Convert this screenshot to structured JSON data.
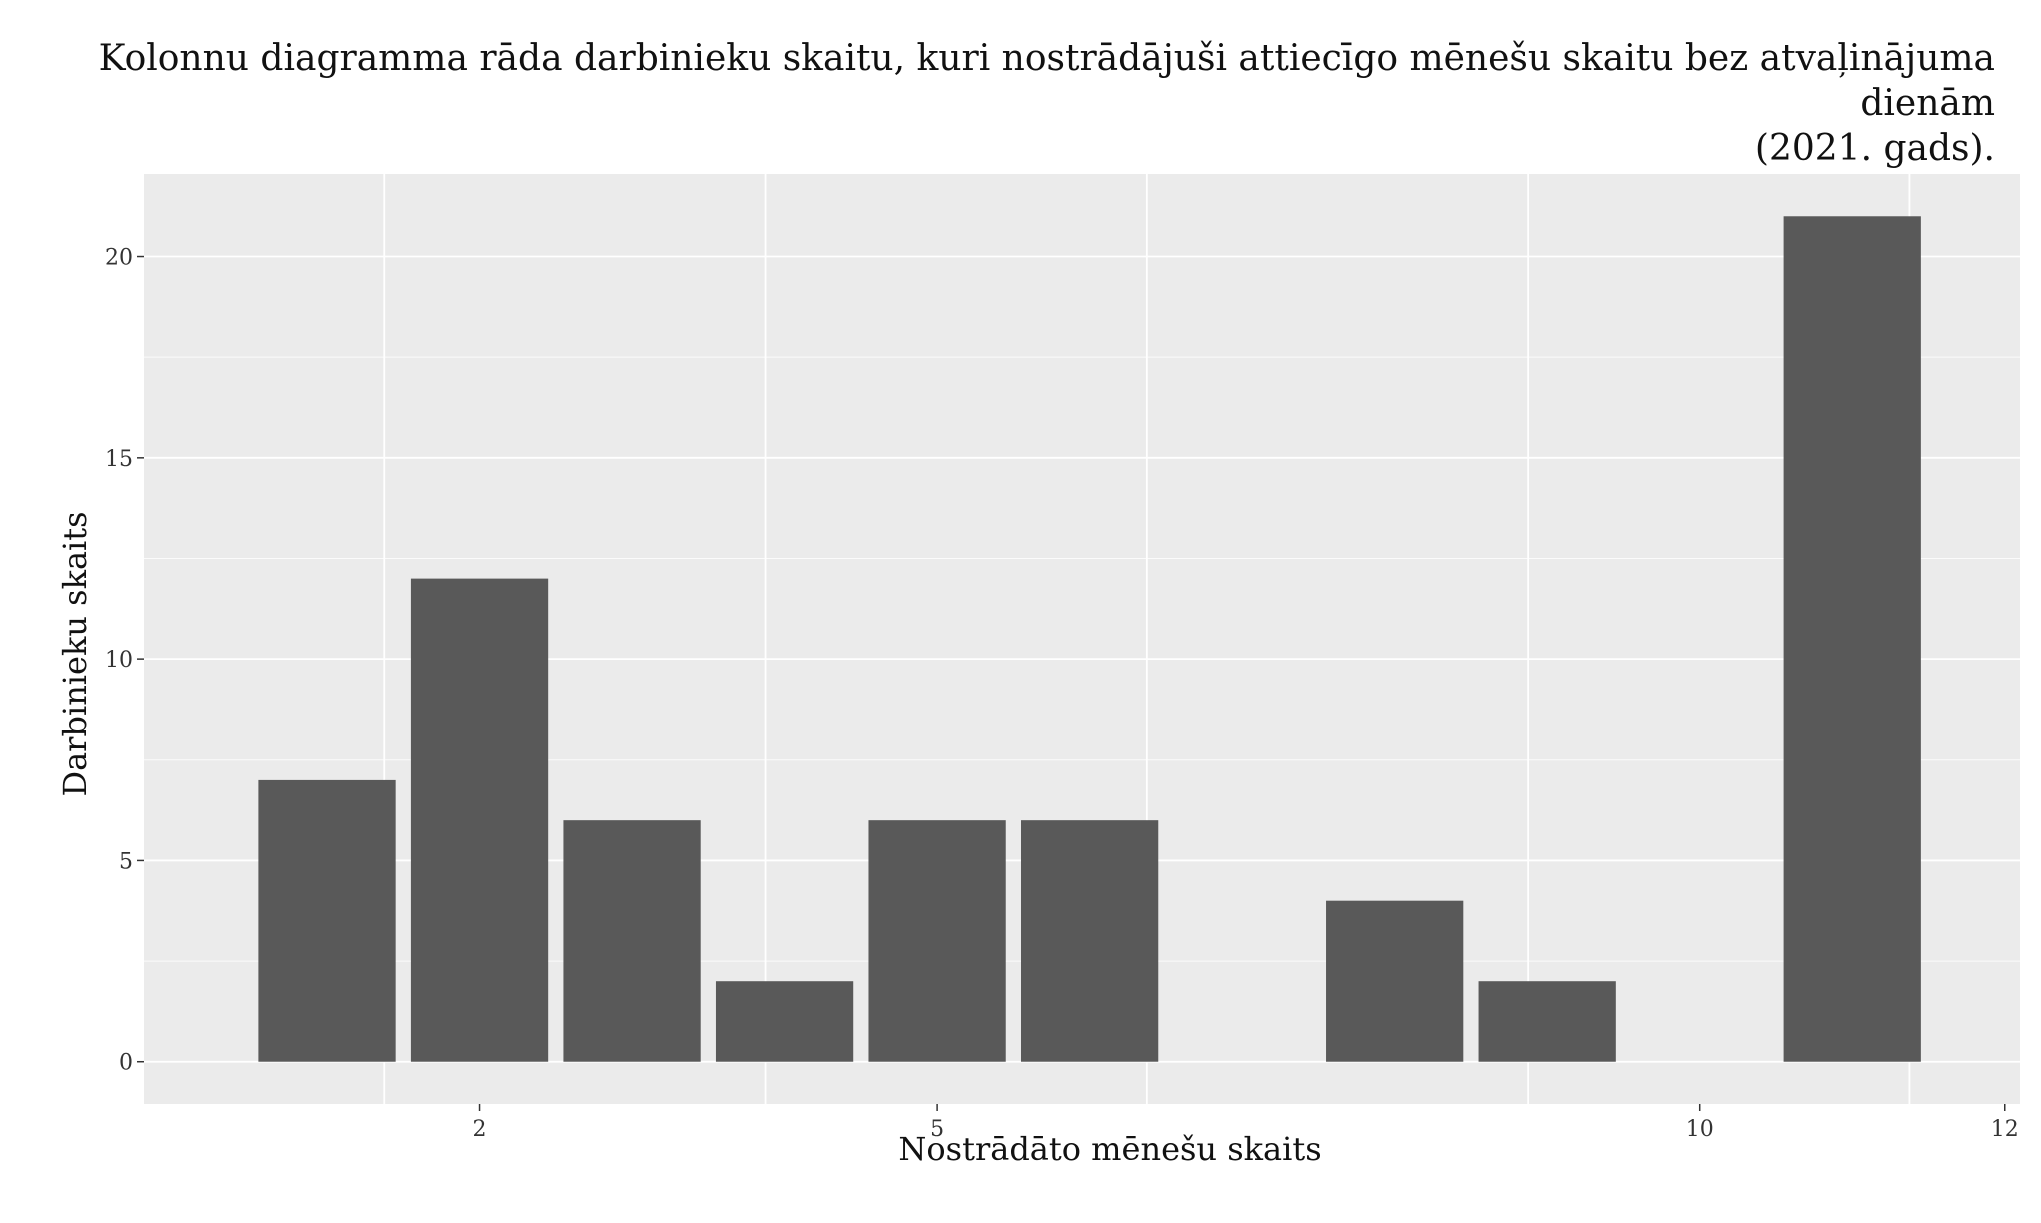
{
  "chart_data": {
    "type": "bar",
    "title_line1": "Kolonnu diagramma rāda darbinieku skaitu, kuri nostrādājuši attiecīgo mēnešu skaitu bez atvaļinājuma dienām",
    "title_line2": "(2021. gads).",
    "xlabel": "Nostrādāto mēnešu skaits",
    "ylabel": "Darbinieku skaits",
    "x": [
      1,
      2,
      3,
      4,
      5,
      6,
      8,
      9,
      11
    ],
    "values": [
      7,
      12,
      6,
      2,
      6,
      6,
      4,
      2,
      21
    ],
    "x_ticks": [
      2,
      5,
      10,
      12
    ],
    "y_ticks": [
      0,
      5,
      10,
      15,
      20
    ],
    "xlim": [
      -0.2,
      12.1
    ],
    "ylim": [
      -1.05,
      22.05
    ],
    "x_major_grid": [
      1.375,
      3.875,
      6.375,
      8.875,
      11.375
    ],
    "bar_width": 0.9,
    "grid": true,
    "legend": "none",
    "colors": {
      "bar": "#595959",
      "panel": "#ebebeb",
      "grid": "#ffffff"
    }
  }
}
